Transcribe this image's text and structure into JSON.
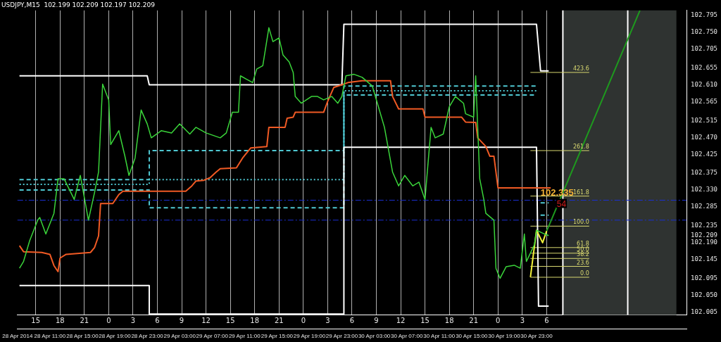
{
  "chart_data": {
    "type": "line",
    "title": "USDJPY,M15  102.199 102.209 102.197 102.209",
    "xlim": [
      "2014-04-28T12:45",
      "2014-05-01T23:15"
    ],
    "ylim": [
      101.998,
      102.808
    ],
    "xticks": [
      {
        "value": "2014-04-28T15:00",
        "label": "15"
      },
      {
        "value": "2014-04-28T18:00",
        "label": "18"
      },
      {
        "value": "2014-04-28T21:00",
        "label": "21"
      },
      {
        "value": "2014-04-29T00:00",
        "label": "0"
      },
      {
        "value": "2014-04-29T03:00",
        "label": "3"
      },
      {
        "value": "2014-04-29T06:00",
        "label": "6"
      },
      {
        "value": "2014-04-29T09:00",
        "label": "9"
      },
      {
        "value": "2014-04-29T12:00",
        "label": "12"
      },
      {
        "value": "2014-04-29T15:00",
        "label": "15"
      },
      {
        "value": "2014-04-29T18:00",
        "label": "18"
      },
      {
        "value": "2014-04-29T21:00",
        "label": "21"
      },
      {
        "value": "2014-04-30T00:00",
        "label": "0"
      },
      {
        "value": "2014-04-30T03:00",
        "label": "3"
      },
      {
        "value": "2014-04-30T06:00",
        "label": "6"
      },
      {
        "value": "2014-04-30T09:00",
        "label": "9"
      },
      {
        "value": "2014-04-30T12:00",
        "label": "12"
      },
      {
        "value": "2014-04-30T15:00",
        "label": "15"
      },
      {
        "value": "2014-04-30T18:00",
        "label": "18"
      },
      {
        "value": "2014-04-30T21:00",
        "label": "21"
      },
      {
        "value": "2014-05-01T00:00",
        "label": "0"
      },
      {
        "value": "2014-05-01T03:00",
        "label": "3"
      },
      {
        "value": "2014-05-01T06:00",
        "label": "6"
      }
    ],
    "x2lim": [
      "2014-04-28T07:00",
      "2014-05-01T17:30"
    ],
    "x2ticks": [
      {
        "value": "2014-04-28T07:00",
        "label": "28 Apr 2014"
      },
      {
        "value": "2014-04-28T11:00",
        "label": "28 Apr 11:00"
      },
      {
        "value": "2014-04-28T15:00",
        "label": "28 Apr 15:00"
      },
      {
        "value": "2014-04-28T19:00",
        "label": "28 Apr 19:00"
      },
      {
        "value": "2014-04-28T23:00",
        "label": "28 Apr 23:00"
      },
      {
        "value": "2014-04-29T03:00",
        "label": "29 Apr 03:00"
      },
      {
        "value": "2014-04-29T07:00",
        "label": "29 Apr 07:00"
      },
      {
        "value": "2014-04-29T11:00",
        "label": "29 Apr 11:00"
      },
      {
        "value": "2014-04-29T15:00",
        "label": "29 Apr 15:00"
      },
      {
        "value": "2014-04-29T19:00",
        "label": "29 Apr 19:00"
      },
      {
        "value": "2014-04-29T23:00",
        "label": "29 Apr 23:00"
      },
      {
        "value": "2014-04-30T03:00",
        "label": "30 Apr 03:00"
      },
      {
        "value": "2014-04-30T07:00",
        "label": "30 Apr 07:00"
      },
      {
        "value": "2014-04-30T11:00",
        "label": "30 Apr 11:00"
      },
      {
        "value": "2014-04-30T15:00",
        "label": "30 Apr 15:00"
      },
      {
        "value": "2014-04-30T19:00",
        "label": "30 Apr 19:00"
      },
      {
        "value": "2014-04-30T23:00",
        "label": "30 Apr 23:00"
      }
    ],
    "yticks": [
      102.005,
      {
        "value": 102.05,
        "label": "102.050"
      },
      102.095,
      102.145,
      {
        "value": 102.19,
        "label": "102.190"
      },
      102.209,
      102.235,
      102.285,
      {
        "value": 102.33,
        "label": "102.330"
      },
      102.375,
      102.425,
      {
        "value": 102.47,
        "label": "102.470"
      },
      102.515,
      102.565,
      {
        "value": 102.61,
        "label": "102.610"
      },
      102.655,
      102.705,
      {
        "value": 102.75,
        "label": "102.750"
      },
      102.795
    ],
    "grid": "x",
    "legend": false,
    "marker": "none",
    "series": [
      {
        "color": "#3ad43a",
        "x": [
          "2014-04-28T13:00",
          "2014-04-28T13:30",
          "2014-04-28T14:15",
          "2014-04-28T15:15",
          "2014-04-28T15:30",
          "2014-04-28T16:15",
          "2014-04-28T17:15",
          "2014-04-28T17:45",
          "2014-04-28T18:30",
          "2014-04-28T19:45",
          "2014-04-28T20:30",
          "2014-04-28T21:30",
          "2014-04-28T22:15",
          "2014-04-28T22:45",
          "2014-04-28T23:15",
          "2014-04-29T00:00",
          "2014-04-29T00:15",
          "2014-04-29T01:15",
          "2014-04-29T02:00",
          "2014-04-29T02:30",
          "2014-04-29T03:15",
          "2014-04-29T04:00",
          "2014-04-29T04:45",
          "2014-04-29T05:15",
          "2014-04-29T06:30",
          "2014-04-29T07:45",
          "2014-04-29T08:45",
          "2014-04-29T10:00",
          "2014-04-29T10:45",
          "2014-04-29T12:00",
          "2014-04-29T13:45",
          "2014-04-29T14:30",
          "2014-04-29T15:15",
          "2014-04-29T16:00",
          "2014-04-29T16:15",
          "2014-04-29T17:00",
          "2014-04-29T17:45",
          "2014-04-29T18:15",
          "2014-04-29T19:00",
          "2014-04-29T19:45",
          "2014-04-29T20:15",
          "2014-04-29T21:00",
          "2014-04-29T21:30",
          "2014-04-29T22:15",
          "2014-04-29T22:45",
          "2014-04-29T23:00",
          "2014-04-29T23:45",
          "2014-04-30T01:00",
          "2014-04-30T01:45",
          "2014-04-30T02:30",
          "2014-04-30T03:30",
          "2014-04-30T04:15",
          "2014-04-30T04:45",
          "2014-04-30T05:15",
          "2014-04-30T06:15",
          "2014-04-30T07:15",
          "2014-04-30T08:30",
          "2014-04-30T09:15",
          "2014-04-30T10:00",
          "2014-04-30T11:00",
          "2014-04-30T11:45",
          "2014-04-30T12:30",
          "2014-04-30T13:30",
          "2014-04-30T14:15",
          "2014-04-30T15:00",
          "2014-04-30T15:45",
          "2014-04-30T16:15",
          "2014-04-30T17:15",
          "2014-04-30T18:00",
          "2014-04-30T18:45",
          "2014-04-30T19:45",
          "2014-04-30T20:00",
          "2014-04-30T21:00",
          "2014-04-30T21:15",
          "2014-04-30T21:30",
          "2014-04-30T21:45",
          "2014-04-30T22:15",
          "2014-04-30T22:30",
          "2014-04-30T23:30",
          "2014-04-30T23:45",
          "2014-05-01T00:15",
          "2014-05-01T01:00",
          "2014-05-01T02:00",
          "2014-05-01T02:45",
          "2014-05-01T03:15",
          "2014-05-01T03:30",
          "2014-05-01T04:30",
          "2014-05-01T04:45",
          "2014-05-01T05:45",
          "2014-05-01T06:15"
        ],
        "values": [
          102.122,
          102.14,
          102.195,
          102.25,
          102.257,
          102.213,
          102.268,
          102.36,
          102.36,
          102.305,
          102.369,
          102.25,
          102.323,
          102.378,
          102.612,
          102.57,
          102.451,
          102.488,
          102.42,
          102.369,
          102.415,
          102.543,
          102.506,
          102.469,
          102.488,
          102.482,
          102.506,
          102.479,
          102.497,
          102.482,
          102.469,
          102.482,
          102.537,
          102.537,
          102.634,
          102.625,
          102.616,
          102.652,
          102.661,
          102.762,
          102.725,
          102.735,
          102.689,
          102.671,
          102.643,
          102.579,
          102.561,
          102.579,
          102.579,
          102.57,
          102.579,
          102.561,
          102.579,
          102.634,
          102.638,
          102.63,
          102.607,
          102.552,
          102.497,
          102.378,
          102.341,
          102.369,
          102.341,
          102.351,
          102.305,
          102.497,
          102.469,
          102.479,
          102.552,
          102.579,
          102.561,
          102.533,
          102.524,
          102.634,
          102.497,
          102.36,
          102.305,
          102.268,
          102.25,
          102.122,
          102.095,
          102.126,
          102.13,
          102.122,
          102.213,
          102.14,
          102.185,
          102.223,
          102.213,
          102.209
        ]
      },
      {
        "color": "#f05a24",
        "x": [
          "2014-04-28T13:00",
          "2014-04-28T13:30",
          "2014-04-28T15:45",
          "2014-04-28T16:45",
          "2014-04-28T17:15",
          "2014-04-28T17:45",
          "2014-04-28T18:00",
          "2014-04-28T18:45",
          "2014-04-28T21:45",
          "2014-04-28T22:15",
          "2014-04-28T22:45",
          "2014-04-28T23:00",
          "2014-04-29T00:30",
          "2014-04-29T01:15",
          "2014-04-29T01:45",
          "2014-04-29T09:30",
          "2014-04-29T10:15",
          "2014-04-29T10:45",
          "2014-04-29T11:45",
          "2014-04-29T12:30",
          "2014-04-29T13:15",
          "2014-04-29T13:45",
          "2014-04-29T15:45",
          "2014-04-29T16:30",
          "2014-04-29T17:30",
          "2014-04-29T19:30",
          "2014-04-29T19:45",
          "2014-04-29T21:45",
          "2014-04-29T22:00",
          "2014-04-29T22:45",
          "2014-04-29T23:00",
          "2014-04-30T02:30",
          "2014-04-30T03:00",
          "2014-04-30T03:45",
          "2014-04-30T04:45",
          "2014-04-30T05:30",
          "2014-04-30T07:15",
          "2014-04-30T10:45",
          "2014-04-30T11:00",
          "2014-04-30T11:45",
          "2014-04-30T14:45",
          "2014-04-30T15:00",
          "2014-04-30T19:30",
          "2014-04-30T20:00",
          "2014-04-30T21:15",
          "2014-04-30T21:30",
          "2014-04-30T22:30",
          "2014-04-30T23:00",
          "2014-04-30T23:30",
          "2014-04-30T23:45",
          "2014-05-01T00:00",
          "2014-05-01T06:30"
        ],
        "values": [
          102.182,
          102.166,
          102.164,
          102.159,
          102.129,
          102.113,
          102.149,
          102.159,
          102.164,
          102.177,
          102.208,
          102.294,
          102.294,
          102.318,
          102.327,
          102.327,
          102.341,
          102.354,
          102.356,
          102.363,
          102.378,
          102.387,
          102.389,
          102.415,
          102.442,
          102.446,
          102.497,
          102.497,
          102.521,
          102.524,
          102.537,
          102.537,
          102.566,
          102.603,
          102.61,
          102.616,
          102.621,
          102.621,
          102.579,
          102.546,
          102.546,
          102.524,
          102.524,
          102.511,
          102.51,
          102.469,
          102.446,
          102.42,
          102.42,
          102.378,
          102.336,
          102.336
        ]
      },
      {
        "color": "#f2f23a",
        "x": [
          "2014-05-01T04:00",
          "2014-05-01T04:45",
          "2014-05-01T05:30",
          "2014-05-01T06:00"
        ],
        "values": [
          102.098,
          102.223,
          102.19,
          102.221
        ]
      },
      {
        "color": "#1e9a1e",
        "x": [
          "2014-05-01T06:00",
          "2014-05-01T17:30"
        ],
        "values": [
          102.221,
          102.808
        ]
      },
      {
        "color": "#ffffff",
        "x": [
          "2014-04-28T13:00",
          "2014-04-29T04:45",
          "2014-04-29T05:00",
          "2014-04-30T04:45",
          "2014-04-30T05:00",
          "2014-05-01T04:45",
          "2014-05-01T05:15",
          "2014-05-01T06:15"
        ],
        "values": [
          102.634,
          102.634,
          102.61,
          102.61,
          102.771,
          102.771,
          102.647,
          102.647
        ]
      },
      {
        "color": "#ffffff",
        "x": [
          "2014-04-28T13:00",
          "2014-04-29T05:00",
          "2014-04-29T05:00",
          "2014-04-30T05:00",
          "2014-04-30T05:00",
          "2014-05-01T04:45",
          "2014-05-01T05:00",
          "2014-05-01T06:15"
        ],
        "values": [
          102.076,
          102.076,
          102.0,
          102.0,
          102.444,
          102.444,
          102.021,
          102.021
        ]
      },
      {
        "color": "#4fc8d2",
        "line_style": "dashed",
        "x": [
          "2014-04-28T13:00",
          "2014-04-29T05:00",
          "2014-04-29T05:00",
          "2014-04-30T05:00",
          "2014-04-30T05:00",
          "2014-05-01T04:45",
          "2014-05-01T05:00",
          "2014-05-01T05:15",
          "2014-05-01T06:15"
        ],
        "values": [
          102.358,
          102.358,
          102.435,
          102.435,
          102.607,
          102.607,
          null,
          102.296,
          102.296
        ]
      },
      {
        "color": "#4fc8d2",
        "line_style": "dotted",
        "x": [
          "2014-04-28T13:00",
          "2014-04-29T05:00",
          "2014-04-29T05:00",
          "2014-04-30T05:00",
          "2014-04-30T05:00",
          "2014-05-01T04:45"
        ],
        "values": [
          102.345,
          102.345,
          102.358,
          102.358,
          102.594,
          102.594
        ]
      },
      {
        "color": "#4fc8d2",
        "line_style": "dashed",
        "x": [
          "2014-04-28T13:00",
          "2014-04-29T05:00",
          "2014-04-29T05:00",
          "2014-04-30T05:00",
          "2014-04-30T05:00",
          "2014-05-01T04:45",
          "2014-05-01T05:00",
          "2014-05-01T05:15",
          "2014-05-01T06:15"
        ],
        "values": [
          102.33,
          102.33,
          102.283,
          102.283,
          102.583,
          102.583,
          null,
          102.263,
          102.263
        ]
      },
      {
        "color": "#d8d870",
        "x": [
          "2014-05-01T04:00",
          "2014-05-01T11:15"
        ],
        "values": [
          102.643,
          102.643
        ]
      },
      {
        "color": "#d8d870",
        "x": [
          "2014-05-01T04:00",
          "2014-05-01T11:15"
        ],
        "values": [
          102.435,
          102.435
        ]
      },
      {
        "color": "#d8d870",
        "x": [
          "2014-05-01T04:00",
          "2014-05-01T11:15"
        ],
        "values": [
          102.314,
          102.314
        ]
      },
      {
        "color": "#d8d870",
        "x": [
          "2014-05-01T04:00",
          "2014-05-01T11:15"
        ],
        "values": [
          102.234,
          102.234
        ]
      },
      {
        "color": "#d8d870",
        "x": [
          "2014-05-01T04:00",
          "2014-05-01T11:15"
        ],
        "values": [
          102.177,
          102.177
        ]
      },
      {
        "color": "#d8d870",
        "x": [
          "2014-05-01T04:00",
          "2014-05-01T11:15"
        ],
        "values": [
          102.162,
          102.162
        ]
      },
      {
        "color": "#d8d870",
        "x": [
          "2014-05-01T04:00",
          "2014-05-01T11:15"
        ],
        "values": [
          102.148,
          102.148
        ]
      },
      {
        "color": "#d8d870",
        "x": [
          "2014-05-01T04:00",
          "2014-05-01T11:15"
        ],
        "values": [
          102.127,
          102.127
        ]
      },
      {
        "color": "#d8d870",
        "x": [
          "2014-05-01T04:00",
          "2014-05-01T11:15"
        ],
        "values": [
          102.098,
          102.098
        ]
      }
    ],
    "bands": [
      {
        "axis": "x",
        "from": "2014-05-01T08:00",
        "to": "2014-05-01T22:00",
        "color": "#2f3331"
      }
    ],
    "ref_lines": [
      {
        "axis": "x",
        "value": "2014-05-01T08:00",
        "color": "#ffffff"
      },
      {
        "axis": "x",
        "value": "2014-05-01T16:00",
        "color": "#ffffff"
      },
      {
        "axis": "y",
        "value": 102.303,
        "color": "#1a2fd0",
        "line_style": "dashed"
      },
      {
        "axis": "y",
        "value": 102.25,
        "color": "#1a2fd0",
        "line_style": "dashed"
      }
    ],
    "annotations": [
      {
        "text": "102.335",
        "x": "2014-05-01T05:15",
        "y": 102.316
      },
      {
        "text": "54",
        "x": "2014-05-01T07:15",
        "y": 102.286
      },
      {
        "text": "423.6",
        "x": "2014-05-01T11:15",
        "y": 102.643
      },
      {
        "text": "261.8",
        "x": "2014-05-01T11:15",
        "y": 102.435
      },
      {
        "text": "161.8",
        "x": "2014-05-01T11:15",
        "y": 102.314
      },
      {
        "text": "100.0",
        "x": "2014-05-01T11:15",
        "y": 102.234
      },
      {
        "text": "61.8",
        "x": "2014-05-01T11:15",
        "y": 102.177
      },
      {
        "text": "50.0",
        "x": "2014-05-01T11:15",
        "y": 102.162
      },
      {
        "text": "38.2",
        "x": "2014-05-01T11:15",
        "y": 102.148
      },
      {
        "text": "23.6",
        "x": "2014-05-01T11:15",
        "y": 102.127
      },
      {
        "text": "0.0",
        "x": "2014-05-01T11:15",
        "y": 102.098
      }
    ]
  }
}
